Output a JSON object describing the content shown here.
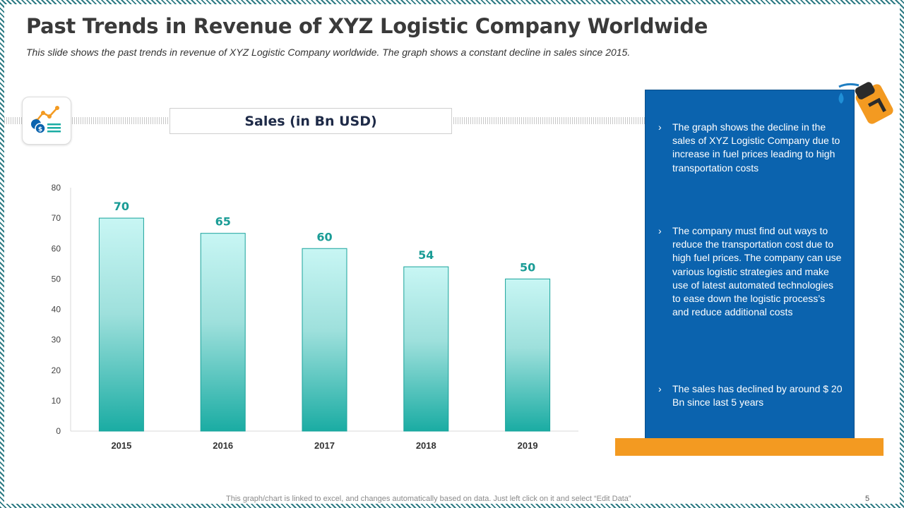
{
  "slide": {
    "title": "Past Trends in Revenue of XYZ Logistic Company Worldwide",
    "subtitle": "This slide shows  the past trends  in revenue of XYZ Logistic Company worldwide.  The graph shows  a constant decline in sales since 2015.",
    "footnote": "This graph/chart is linked to excel, and changes automatically based on data. Just left click on it and select “Edit Data”",
    "page_number": "5",
    "icons": {
      "badge": "sales-chart-icon",
      "pump": "fuel-pump-icon",
      "drop": "fuel-drop-icon",
      "chevron": "chevron-right-icon"
    }
  },
  "colors": {
    "bar_top": "#c8f6f4",
    "bar_bottom": "#1aaca3",
    "bar_stroke": "#19a39b",
    "value_label": "#1a9c96",
    "panel": "#0b63ae",
    "accent_orange": "#f39a21",
    "title": "#3a3a3a"
  },
  "chart_data": {
    "type": "bar",
    "title": "Sales (in Bn USD)",
    "categories": [
      "2015",
      "2016",
      "2017",
      "2018",
      "2019"
    ],
    "values": [
      70,
      65,
      60,
      54,
      50
    ],
    "ylim": [
      0,
      80
    ],
    "yticks": [
      0,
      10,
      20,
      30,
      40,
      50,
      60,
      70,
      80
    ],
    "xlabel": "",
    "ylabel": "",
    "grid": false,
    "data_labels": true,
    "legend": "none"
  },
  "info_panel": {
    "chevron": "›",
    "bullets": [
      "The graph shows the decline in the sales of XYZ Logistic Company due to increase in fuel prices leading to high transportation  costs",
      "The company must find out ways to reduce the transportation cost due to high fuel prices. The company can use various logistic strategies and make use of latest automated technologies to ease down the logistic process’s and reduce additional costs",
      "The sales has declined by around $ 20 Bn since last 5 years"
    ]
  }
}
